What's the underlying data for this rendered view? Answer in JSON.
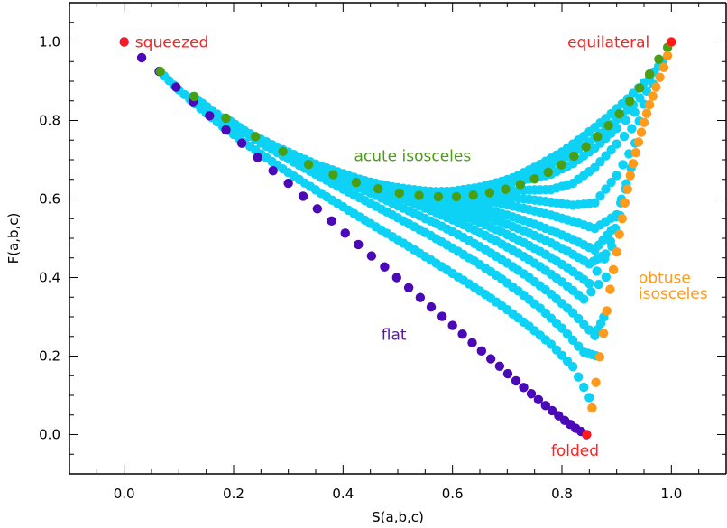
{
  "chart_data": {
    "type": "scatter",
    "title": "",
    "xlabel": "S(a,b,c)",
    "ylabel": "F(a,b,c)",
    "xlim": [
      -0.1,
      1.1
    ],
    "ylim": [
      -0.1,
      1.1
    ],
    "x_ticks": [
      "0.0",
      "0.2",
      "0.4",
      "0.6",
      "0.8",
      "1.0"
    ],
    "y_ticks": [
      "0.0",
      "0.2",
      "0.4",
      "0.6",
      "0.8",
      "1.0"
    ],
    "grid": false,
    "legend": "none",
    "annotations": [
      {
        "text": "squeezed",
        "x": 0.02,
        "y": 1.0,
        "color": "#ff2020"
      },
      {
        "text": "equilateral",
        "x": 0.81,
        "y": 1.0,
        "color": "#ff2020"
      },
      {
        "text": "acute isosceles",
        "x": 0.42,
        "y": 0.71,
        "color": "#4a9e14"
      },
      {
        "text": "obtuse",
        "x": 0.94,
        "y": 0.4,
        "color": "#ff9a1a"
      },
      {
        "text": "isosceles",
        "x": 0.94,
        "y": 0.36,
        "color": "#ff9a1a"
      },
      {
        "text": "flat",
        "x": 0.47,
        "y": 0.255,
        "color": "#5a10c0"
      },
      {
        "text": "folded",
        "x": 0.78,
        "y": -0.04,
        "color": "#ff2020"
      }
    ],
    "colors": {
      "interior": "#0ed2f5",
      "flat": "#4a08b8",
      "acute": "#4a9e14",
      "obtuse": "#ff9a1a",
      "special": "#ff1a1a"
    },
    "series": [
      {
        "key": "flat",
        "x": [
          0.0,
          0.032,
          0.064,
          0.095,
          0.126,
          0.156,
          0.186,
          0.215,
          0.244,
          0.272,
          0.3,
          0.327,
          0.353,
          0.379,
          0.404,
          0.428,
          0.452,
          0.476,
          0.498,
          0.52,
          0.541,
          0.561,
          0.581,
          0.6,
          0.618,
          0.636,
          0.653,
          0.67,
          0.686,
          0.701,
          0.716,
          0.73,
          0.744,
          0.757,
          0.77,
          0.782,
          0.794,
          0.805,
          0.815,
          0.825,
          0.835,
          0.845
        ],
        "y": [
          1.0,
          0.96,
          0.925,
          0.885,
          0.848,
          0.812,
          0.776,
          0.742,
          0.706,
          0.672,
          0.64,
          0.607,
          0.575,
          0.544,
          0.513,
          0.484,
          0.455,
          0.427,
          0.4,
          0.374,
          0.349,
          0.325,
          0.301,
          0.278,
          0.256,
          0.234,
          0.213,
          0.193,
          0.174,
          0.155,
          0.137,
          0.12,
          0.104,
          0.089,
          0.074,
          0.061,
          0.048,
          0.036,
          0.026,
          0.016,
          0.008,
          0.0
        ]
      },
      {
        "key": "acute",
        "x": [
          0.066,
          0.128,
          0.186,
          0.24,
          0.29,
          0.337,
          0.382,
          0.424,
          0.464,
          0.503,
          0.539,
          0.574,
          0.607,
          0.638,
          0.668,
          0.697,
          0.724,
          0.75,
          0.775,
          0.799,
          0.822,
          0.844,
          0.865,
          0.885,
          0.905,
          0.924,
          0.942,
          0.96,
          0.977,
          0.993,
          1.0
        ],
        "y": [
          0.925,
          0.861,
          0.806,
          0.759,
          0.721,
          0.688,
          0.662,
          0.642,
          0.626,
          0.615,
          0.609,
          0.606,
          0.606,
          0.61,
          0.616,
          0.625,
          0.637,
          0.651,
          0.668,
          0.687,
          0.709,
          0.733,
          0.759,
          0.787,
          0.817,
          0.849,
          0.883,
          0.918,
          0.956,
          0.986,
          1.0
        ]
      },
      {
        "key": "obtuse",
        "x": [
          0.855,
          0.862,
          0.869,
          0.876,
          0.882,
          0.888,
          0.894,
          0.9,
          0.905,
          0.91,
          0.915,
          0.92,
          0.925,
          0.93,
          0.935,
          0.94,
          0.945,
          0.95,
          0.955,
          0.96,
          0.966,
          0.972,
          0.979,
          0.986,
          0.993,
          1.0
        ],
        "y": [
          0.068,
          0.133,
          0.198,
          0.258,
          0.315,
          0.37,
          0.42,
          0.465,
          0.51,
          0.55,
          0.59,
          0.625,
          0.66,
          0.69,
          0.718,
          0.745,
          0.77,
          0.795,
          0.818,
          0.84,
          0.862,
          0.885,
          0.91,
          0.935,
          0.965,
          1.0
        ]
      },
      {
        "key": "special",
        "x": [
          0.0,
          1.0,
          0.845
        ],
        "y": [
          1.0,
          1.0,
          0.0
        ]
      }
    ],
    "interior_curves": [
      {
        "x": [
          0.064,
          0.1,
          0.14,
          0.18,
          0.22,
          0.26,
          0.3,
          0.34,
          0.38,
          0.42,
          0.46,
          0.5,
          0.54,
          0.58,
          0.62,
          0.66,
          0.7,
          0.74,
          0.78,
          0.82,
          0.86
        ],
        "y": [
          0.925,
          0.878,
          0.83,
          0.785,
          0.744,
          0.705,
          0.667,
          0.632,
          0.597,
          0.563,
          0.529,
          0.496,
          0.462,
          0.428,
          0.393,
          0.357,
          0.318,
          0.276,
          0.23,
          0.173,
          0.068
        ]
      },
      {
        "x": [
          0.126,
          0.16,
          0.2,
          0.24,
          0.28,
          0.32,
          0.36,
          0.4,
          0.44,
          0.48,
          0.52,
          0.56,
          0.6,
          0.64,
          0.68,
          0.72,
          0.76,
          0.8,
          0.84,
          0.869
        ],
        "y": [
          0.861,
          0.826,
          0.787,
          0.751,
          0.718,
          0.686,
          0.655,
          0.625,
          0.596,
          0.567,
          0.537,
          0.507,
          0.475,
          0.442,
          0.406,
          0.366,
          0.322,
          0.271,
          0.21,
          0.198
        ]
      },
      {
        "x": [
          0.186,
          0.22,
          0.26,
          0.3,
          0.34,
          0.38,
          0.42,
          0.46,
          0.5,
          0.54,
          0.58,
          0.62,
          0.66,
          0.7,
          0.74,
          0.78,
          0.82,
          0.86,
          0.882
        ],
        "y": [
          0.806,
          0.774,
          0.743,
          0.714,
          0.686,
          0.66,
          0.634,
          0.609,
          0.583,
          0.557,
          0.531,
          0.502,
          0.471,
          0.437,
          0.4,
          0.358,
          0.31,
          0.252,
          0.315
        ]
      },
      {
        "x": [
          0.24,
          0.28,
          0.32,
          0.36,
          0.4,
          0.44,
          0.48,
          0.52,
          0.56,
          0.6,
          0.64,
          0.68,
          0.72,
          0.76,
          0.8,
          0.84,
          0.894
        ],
        "y": [
          0.759,
          0.732,
          0.707,
          0.683,
          0.66,
          0.638,
          0.616,
          0.594,
          0.571,
          0.547,
          0.521,
          0.493,
          0.462,
          0.428,
          0.389,
          0.345,
          0.42
        ]
      },
      {
        "x": [
          0.29,
          0.33,
          0.37,
          0.41,
          0.45,
          0.49,
          0.53,
          0.57,
          0.61,
          0.65,
          0.69,
          0.73,
          0.77,
          0.81,
          0.85,
          0.905
        ],
        "y": [
          0.721,
          0.699,
          0.679,
          0.66,
          0.641,
          0.622,
          0.603,
          0.583,
          0.562,
          0.54,
          0.516,
          0.489,
          0.459,
          0.425,
          0.385,
          0.51
        ]
      },
      {
        "x": [
          0.337,
          0.37,
          0.41,
          0.45,
          0.49,
          0.53,
          0.57,
          0.61,
          0.65,
          0.69,
          0.73,
          0.77,
          0.81,
          0.85,
          0.88,
          0.915
        ],
        "y": [
          0.688,
          0.674,
          0.658,
          0.643,
          0.628,
          0.612,
          0.596,
          0.579,
          0.561,
          0.541,
          0.519,
          0.495,
          0.467,
          0.435,
          0.46,
          0.59
        ]
      },
      {
        "x": [
          0.382,
          0.42,
          0.46,
          0.5,
          0.54,
          0.58,
          0.62,
          0.66,
          0.7,
          0.74,
          0.78,
          0.82,
          0.86,
          0.89,
          0.925
        ],
        "y": [
          0.662,
          0.651,
          0.64,
          0.628,
          0.616,
          0.604,
          0.59,
          0.575,
          0.559,
          0.541,
          0.52,
          0.497,
          0.47,
          0.52,
          0.66
        ]
      },
      {
        "x": [
          0.424,
          0.46,
          0.5,
          0.54,
          0.58,
          0.62,
          0.66,
          0.7,
          0.74,
          0.78,
          0.82,
          0.86,
          0.9,
          0.935
        ],
        "y": [
          0.642,
          0.636,
          0.629,
          0.622,
          0.614,
          0.605,
          0.596,
          0.585,
          0.573,
          0.559,
          0.543,
          0.525,
          0.56,
          0.718
        ]
      },
      {
        "x": [
          0.464,
          0.5,
          0.54,
          0.58,
          0.62,
          0.66,
          0.7,
          0.74,
          0.78,
          0.82,
          0.86,
          0.9,
          0.945
        ],
        "y": [
          0.626,
          0.624,
          0.621,
          0.618,
          0.614,
          0.61,
          0.605,
          0.599,
          0.592,
          0.584,
          0.59,
          0.66,
          0.77
        ]
      },
      {
        "x": [
          0.503,
          0.54,
          0.58,
          0.62,
          0.66,
          0.7,
          0.74,
          0.78,
          0.82,
          0.86,
          0.9,
          0.955
        ],
        "y": [
          0.615,
          0.617,
          0.619,
          0.62,
          0.621,
          0.622,
          0.623,
          0.624,
          0.64,
          0.68,
          0.74,
          0.818
        ]
      },
      {
        "x": [
          0.539,
          0.58,
          0.62,
          0.66,
          0.7,
          0.74,
          0.78,
          0.82,
          0.86,
          0.9,
          0.966
        ],
        "y": [
          0.609,
          0.616,
          0.624,
          0.632,
          0.641,
          0.651,
          0.663,
          0.69,
          0.73,
          0.78,
          0.862
        ]
      },
      {
        "x": [
          0.574,
          0.61,
          0.65,
          0.69,
          0.73,
          0.77,
          0.81,
          0.85,
          0.89,
          0.93,
          0.979
        ],
        "y": [
          0.606,
          0.617,
          0.63,
          0.645,
          0.662,
          0.68,
          0.708,
          0.745,
          0.79,
          0.84,
          0.91
        ]
      },
      {
        "x": [
          0.638,
          0.68,
          0.72,
          0.76,
          0.8,
          0.84,
          0.88,
          0.92,
          0.96,
          0.993
        ],
        "y": [
          0.61,
          0.635,
          0.66,
          0.688,
          0.72,
          0.76,
          0.805,
          0.855,
          0.91,
          0.965
        ]
      }
    ]
  }
}
